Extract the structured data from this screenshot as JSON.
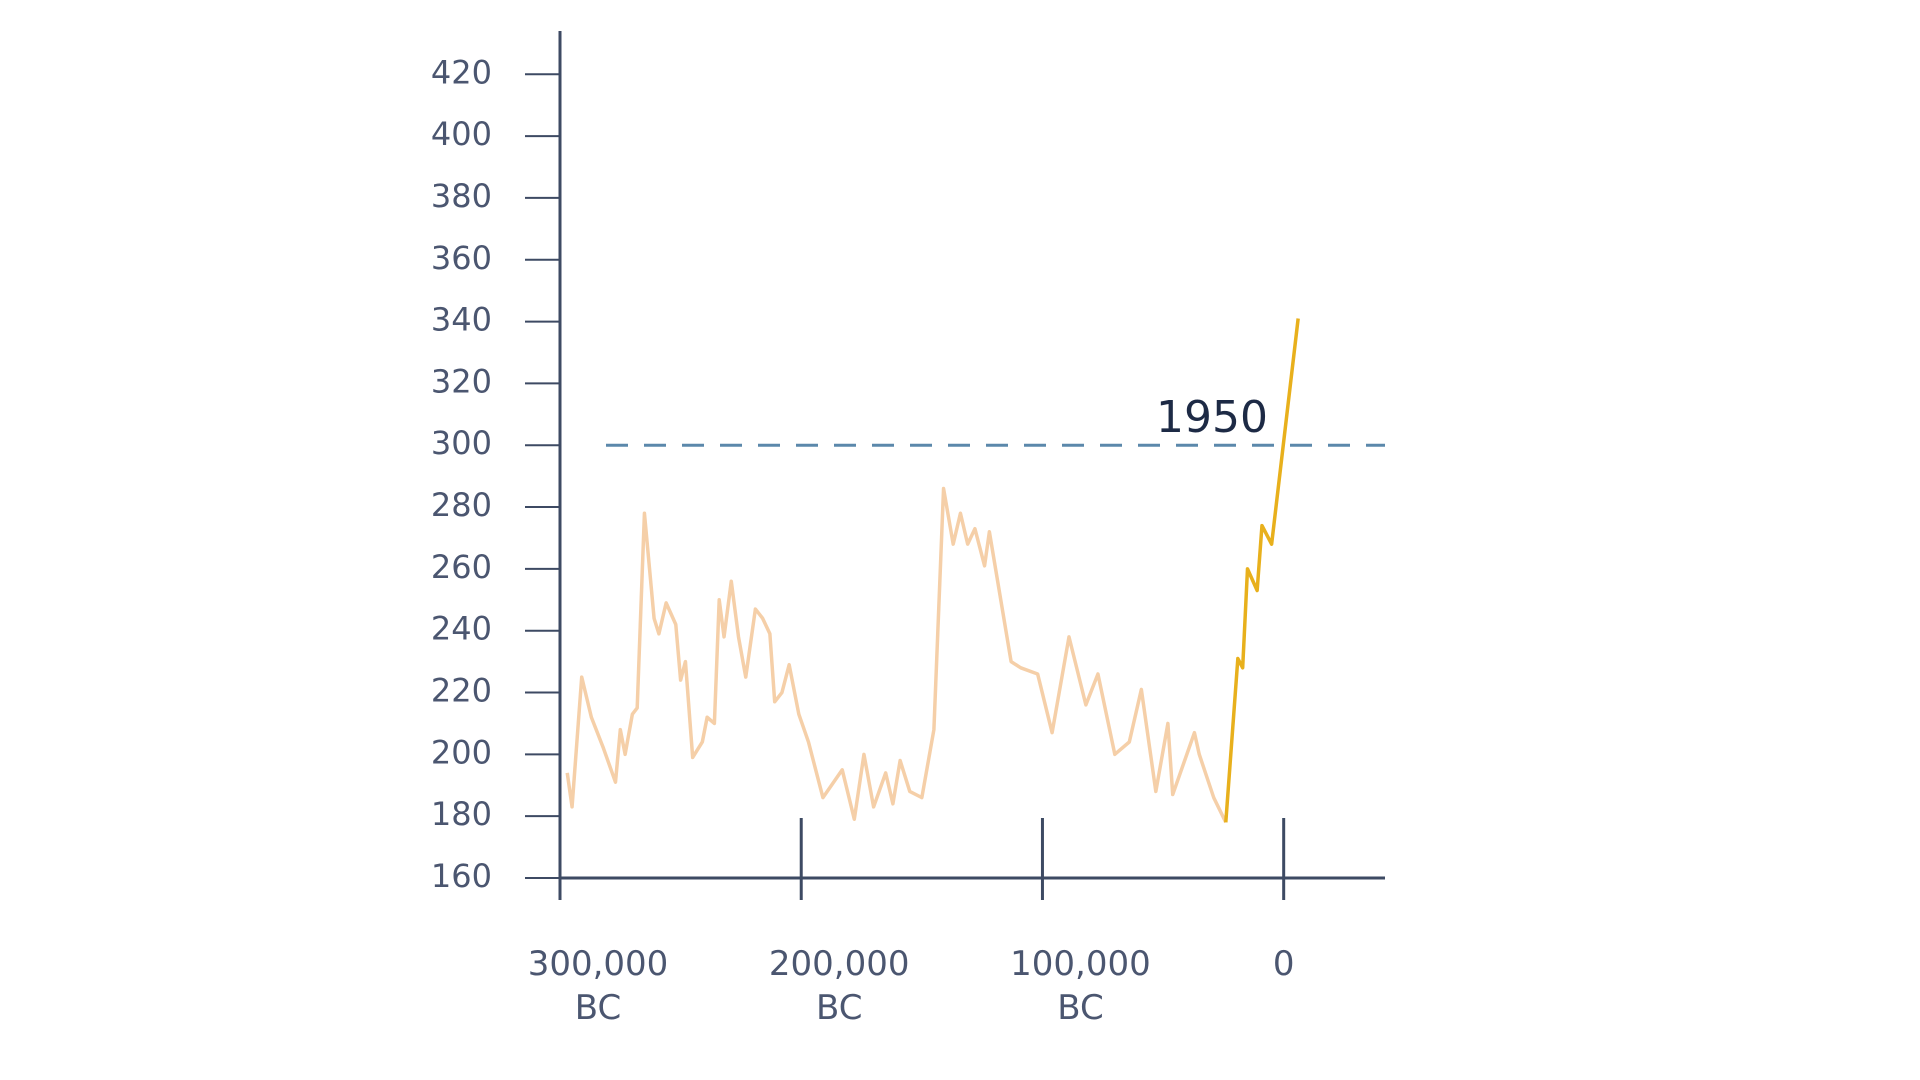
{
  "chart_data": {
    "type": "line",
    "annotation": "1950",
    "reference_line": {
      "value": 300,
      "color": "#5b88ab",
      "dashed": true
    },
    "xlim": [
      -300000,
      42000
    ],
    "ylim": [
      160,
      434
    ],
    "xticks": [
      {
        "value": -300000,
        "label": "300,000 BC"
      },
      {
        "value": -200000,
        "label": "200,000 BC"
      },
      {
        "value": -100000,
        "label": "100,000 BC"
      },
      0
    ],
    "yticks": [
      160,
      180,
      200,
      220,
      240,
      260,
      280,
      300,
      320,
      340,
      360,
      380,
      400,
      420
    ],
    "series": [
      {
        "color": "#f5cfa8",
        "x": [
          -297000,
          -295000,
          -291000,
          -287000,
          -282000,
          -277000,
          -275000,
          -273000,
          -270000,
          -268000,
          -265000,
          -261000,
          -259000,
          -256000,
          -252000,
          -250000,
          -248000,
          -245000,
          -241000,
          -239000,
          -236000,
          -234000,
          -232000,
          -229000,
          -226000,
          -223000,
          -219000,
          -216000,
          -213000,
          -211000,
          -208000,
          -205000,
          -201000,
          -197000,
          -191000,
          -183000,
          -178000,
          -174000,
          -170000,
          -165000,
          -162000,
          -159000,
          -155000,
          -150000,
          -145000,
          -141000,
          -137000,
          -134000,
          -131000,
          -128000,
          -124000,
          -122000,
          -116000,
          -113000,
          -109000,
          -102000,
          -96000,
          -89000,
          -82000,
          -77000,
          -70000,
          -64000,
          -59000,
          -53000,
          -48000,
          -46000,
          -37000,
          -35000,
          -29000,
          -24000
        ],
        "values": [
          194,
          183,
          225,
          212,
          202,
          191,
          208,
          200,
          213,
          215,
          278,
          244,
          239,
          249,
          242,
          224,
          230,
          199,
          204,
          212,
          210,
          250,
          238,
          256,
          238,
          225,
          247,
          244,
          239,
          217,
          220,
          229,
          213,
          204,
          186,
          195,
          179,
          200,
          183,
          194,
          184,
          198,
          188,
          186,
          208,
          286,
          268,
          278,
          268,
          273,
          261,
          272,
          244,
          230,
          228,
          226,
          207,
          238,
          216,
          226,
          200,
          204,
          221,
          188,
          210,
          187,
          207,
          200,
          186,
          178
        ]
      },
      {
        "color": "#e8b01c",
        "x": [
          -24000,
          -19000,
          -17000,
          -15000,
          -11000,
          -9000,
          -5000,
          6000
        ],
        "values": [
          178,
          231,
          228,
          260,
          253,
          274,
          268,
          341
        ]
      }
    ]
  }
}
